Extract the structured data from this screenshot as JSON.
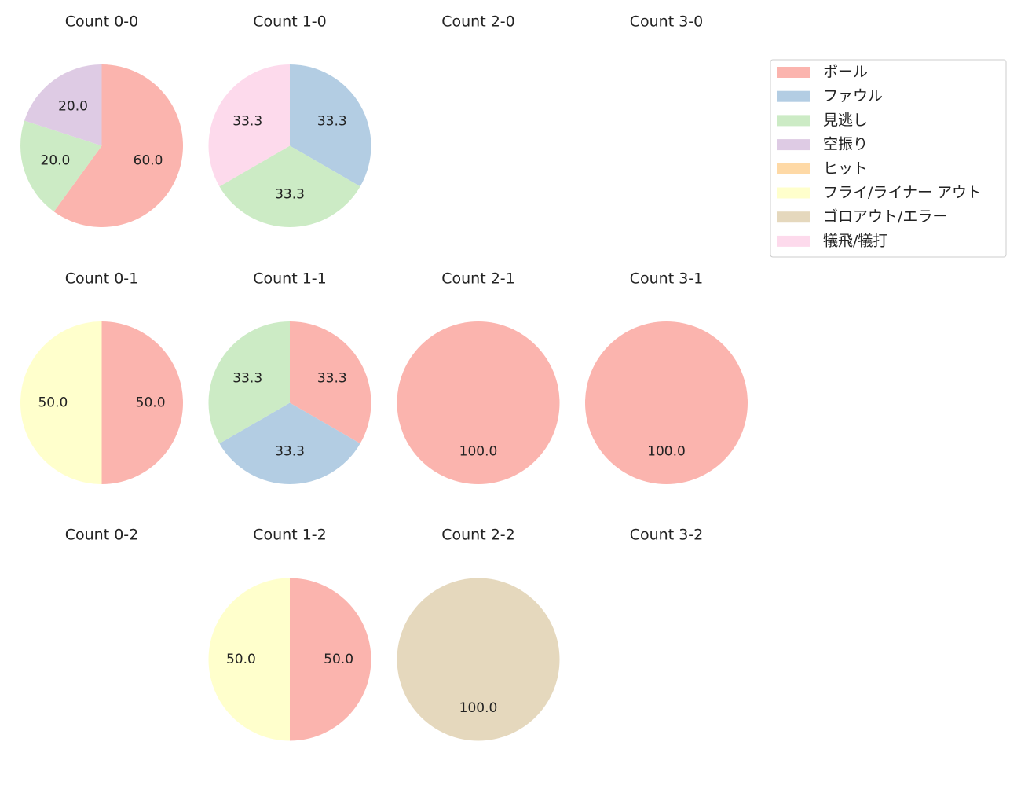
{
  "legend": {
    "placement": "top-right",
    "items": [
      {
        "label": "ボール",
        "color": "#fbb4ae"
      },
      {
        "label": "ファウル",
        "color": "#b3cde3"
      },
      {
        "label": "見逃し",
        "color": "#ccebc5"
      },
      {
        "label": "空振り",
        "color": "#decbe4"
      },
      {
        "label": "ヒット",
        "color": "#fed9a6"
      },
      {
        "label": "フライ/ライナー アウト",
        "color": "#ffffcc"
      },
      {
        "label": "ゴロアウト/エラー",
        "color": "#e5d8bd"
      },
      {
        "label": "犠飛/犠打",
        "color": "#fddaec"
      }
    ]
  },
  "chart_data": [
    {
      "type": "pie",
      "title": "Count 0-0",
      "categories": [
        "ボール",
        "見逃し",
        "空振り"
      ],
      "values": [
        60.0,
        20.0,
        20.0
      ],
      "labels": [
        "60.0",
        "20.0",
        "20.0"
      ],
      "colors": [
        "#fbb4ae",
        "#ccebc5",
        "#decbe4"
      ]
    },
    {
      "type": "pie",
      "title": "Count 1-0",
      "categories": [
        "ファウル",
        "見逃し",
        "犠飛/犠打"
      ],
      "values": [
        33.3,
        33.3,
        33.3
      ],
      "labels": [
        "33.3",
        "33.3",
        "33.3"
      ],
      "colors": [
        "#b3cde3",
        "#ccebc5",
        "#fddaec"
      ]
    },
    {
      "type": "pie",
      "title": "Count 2-0",
      "categories": [],
      "values": [],
      "labels": [],
      "colors": []
    },
    {
      "type": "pie",
      "title": "Count 3-0",
      "categories": [],
      "values": [],
      "labels": [],
      "colors": []
    },
    {
      "type": "pie",
      "title": "Count 0-1",
      "categories": [
        "ボール",
        "フライ/ライナー アウト"
      ],
      "values": [
        50.0,
        50.0
      ],
      "labels": [
        "50.0",
        "50.0"
      ],
      "colors": [
        "#fbb4ae",
        "#ffffcc"
      ]
    },
    {
      "type": "pie",
      "title": "Count 1-1",
      "categories": [
        "ボール",
        "ファウル",
        "見逃し"
      ],
      "values": [
        33.3,
        33.3,
        33.3
      ],
      "labels": [
        "33.3",
        "33.3",
        "33.3"
      ],
      "colors": [
        "#fbb4ae",
        "#b3cde3",
        "#ccebc5"
      ]
    },
    {
      "type": "pie",
      "title": "Count 2-1",
      "categories": [
        "ボール"
      ],
      "values": [
        100.0
      ],
      "labels": [
        "100.0"
      ],
      "colors": [
        "#fbb4ae"
      ]
    },
    {
      "type": "pie",
      "title": "Count 3-1",
      "categories": [
        "ボール"
      ],
      "values": [
        100.0
      ],
      "labels": [
        "100.0"
      ],
      "colors": [
        "#fbb4ae"
      ]
    },
    {
      "type": "pie",
      "title": "Count 0-2",
      "categories": [],
      "values": [],
      "labels": [],
      "colors": []
    },
    {
      "type": "pie",
      "title": "Count 1-2",
      "categories": [
        "ボール",
        "フライ/ライナー アウト"
      ],
      "values": [
        50.0,
        50.0
      ],
      "labels": [
        "50.0",
        "50.0"
      ],
      "colors": [
        "#fbb4ae",
        "#ffffcc"
      ]
    },
    {
      "type": "pie",
      "title": "Count 2-2",
      "categories": [
        "ゴロアウト/エラー"
      ],
      "values": [
        100.0
      ],
      "labels": [
        "100.0"
      ],
      "colors": [
        "#e5d8bd"
      ]
    },
    {
      "type": "pie",
      "title": "Count 3-2",
      "categories": [],
      "values": [],
      "labels": [],
      "colors": []
    }
  ]
}
